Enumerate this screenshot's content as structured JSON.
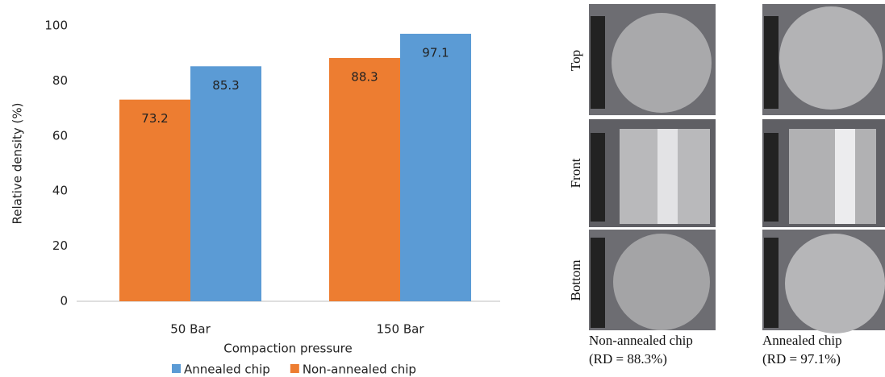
{
  "chart_data": {
    "type": "bar",
    "ylabel": "Relative density (%)",
    "xlabel": "Compaction pressure",
    "categories": [
      "50 Bar",
      "150 Bar"
    ],
    "series": [
      {
        "name": "Annealed chip",
        "color": "#5b9bd5",
        "values": [
          85.3,
          97.1
        ]
      },
      {
        "name": "Non-annealed chip",
        "color": "#ed7d31",
        "values": [
          73.2,
          88.3
        ]
      }
    ],
    "ylim": [
      0,
      100
    ],
    "yticks": [
      0,
      20,
      40,
      60,
      80,
      100
    ],
    "legend": "bottom"
  },
  "panel": {
    "rows": [
      "Top",
      "Front",
      "Bottom"
    ],
    "captions": [
      {
        "name": "Non-annealed chip",
        "rd": "(RD = 88.3%)"
      },
      {
        "name": "Annealed chip",
        "rd": "(RD = 97.1%)"
      }
    ]
  }
}
